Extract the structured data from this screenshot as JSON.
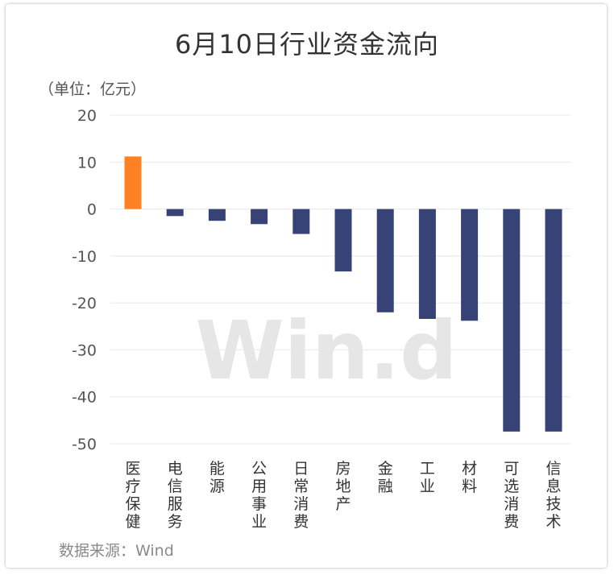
{
  "chart_data": {
    "type": "bar",
    "title": "6月10日行业资金流向",
    "unit_label": "（单位：亿元）",
    "source": "数据来源：Wind",
    "watermark": "Win.d",
    "categories": [
      "医疗保健",
      "电信服务",
      "能源",
      "公用事业",
      "日常消费",
      "房地产",
      "金融",
      "工业",
      "材料",
      "可选消费",
      "信息技术"
    ],
    "values": [
      11.2,
      -1.5,
      -2.5,
      -3.2,
      -5.3,
      -13.3,
      -22.0,
      -23.4,
      -23.8,
      -47.4,
      -47.4
    ],
    "ylim": [
      -50,
      20
    ],
    "yticks": [
      20,
      10,
      0,
      -10,
      -20,
      -30,
      -40,
      -50
    ],
    "grid": true,
    "colors": {
      "positive": "#FF8122",
      "negative": "#374376",
      "grid": "#e8e8e8"
    }
  }
}
